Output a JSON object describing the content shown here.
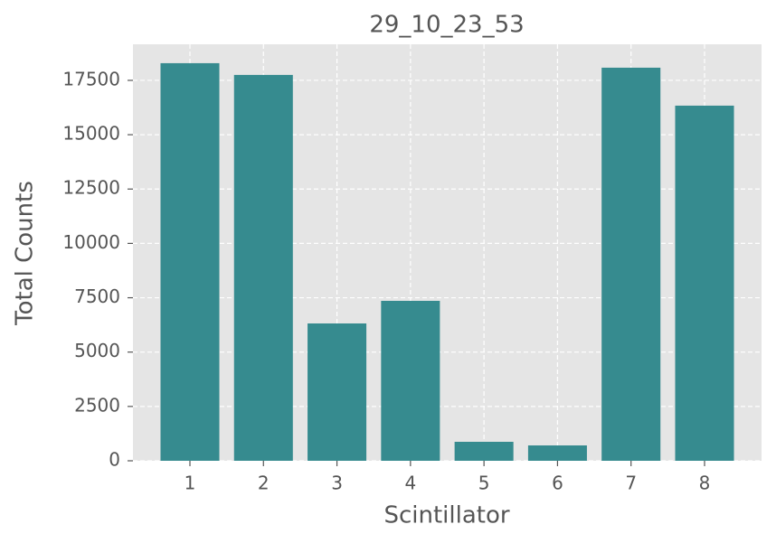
{
  "chart_data": {
    "type": "bar",
    "title": "29_10_23_53",
    "x_label": "Scintillator",
    "y_label": "Total Counts",
    "categories": [
      "1",
      "2",
      "3",
      "4",
      "5",
      "6",
      "7",
      "8"
    ],
    "values": [
      18290,
      17750,
      6318,
      7357,
      873,
      707,
      18083,
      16337
    ],
    "color": "#368b8f",
    "ylim": [
      0,
      19160
    ],
    "yticks": [
      0,
      2500,
      5000,
      7500,
      10000,
      12500,
      15000,
      17500
    ],
    "grid": true
  }
}
